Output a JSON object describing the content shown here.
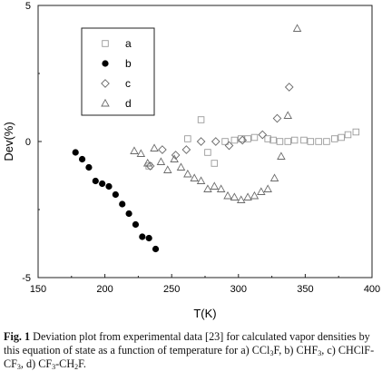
{
  "chart_data": {
    "type": "scatter",
    "xlabel": "T(K)",
    "ylabel": "Dev(%)",
    "xlim": [
      150,
      400
    ],
    "ylim": [
      -5,
      5
    ],
    "xticks": [
      "150",
      "200",
      "250",
      "300",
      "350",
      "400"
    ],
    "yticks": [
      "5",
      "0",
      "-5"
    ],
    "grid": false,
    "legend": "top-left",
    "series": [
      {
        "name": "a",
        "marker": "square",
        "color": "#9a9a9a",
        "filled": false,
        "points": [
          [
            233,
            -0.9
          ],
          [
            262,
            0.1
          ],
          [
            272,
            0.8
          ],
          [
            277,
            -0.4
          ],
          [
            282,
            -0.8
          ],
          [
            290,
            0.0
          ],
          [
            297,
            0.05
          ],
          [
            302,
            0.1
          ],
          [
            307,
            0.1
          ],
          [
            312,
            0.15
          ],
          [
            322,
            0.1
          ],
          [
            326,
            0.05
          ],
          [
            331,
            0.0
          ],
          [
            337,
            0.0
          ],
          [
            342,
            0.05
          ],
          [
            349,
            0.05
          ],
          [
            354,
            0.0
          ],
          [
            360,
            0.0
          ],
          [
            366,
            0.0
          ],
          [
            372,
            0.1
          ],
          [
            377,
            0.15
          ],
          [
            382,
            0.25
          ],
          [
            388,
            0.35
          ]
        ]
      },
      {
        "name": "b",
        "marker": "circle",
        "color": "#000000",
        "filled": true,
        "points": [
          [
            178,
            -0.4
          ],
          [
            183,
            -0.65
          ],
          [
            188,
            -0.95
          ],
          [
            193,
            -1.45
          ],
          [
            198,
            -1.55
          ],
          [
            203,
            -1.65
          ],
          [
            208,
            -1.95
          ],
          [
            213,
            -2.3
          ],
          [
            218,
            -2.65
          ],
          [
            223,
            -3.05
          ],
          [
            228,
            -3.5
          ],
          [
            233,
            -3.55
          ],
          [
            238,
            -3.95
          ]
        ]
      },
      {
        "name": "c",
        "marker": "diamond",
        "color": "#6a6a6a",
        "filled": false,
        "points": [
          [
            234,
            -0.9
          ],
          [
            243,
            -0.3
          ],
          [
            253,
            -0.5
          ],
          [
            261,
            -0.3
          ],
          [
            272,
            0.0
          ],
          [
            283,
            0.0
          ],
          [
            293,
            -0.15
          ],
          [
            303,
            0.05
          ],
          [
            318,
            0.25
          ],
          [
            329,
            0.85
          ],
          [
            338,
            2.0
          ]
        ]
      },
      {
        "name": "d",
        "marker": "triangle",
        "color": "#6a6a6a",
        "filled": false,
        "points": [
          [
            222,
            -0.35
          ],
          [
            227,
            -0.45
          ],
          [
            232,
            -0.8
          ],
          [
            237,
            -0.25
          ],
          [
            242,
            -0.75
          ],
          [
            247,
            -1.05
          ],
          [
            252,
            -0.65
          ],
          [
            257,
            -0.95
          ],
          [
            262,
            -1.2
          ],
          [
            267,
            -1.35
          ],
          [
            272,
            -1.45
          ],
          [
            277,
            -1.75
          ],
          [
            282,
            -1.65
          ],
          [
            287,
            -1.75
          ],
          [
            292,
            -2.0
          ],
          [
            297,
            -2.05
          ],
          [
            302,
            -2.15
          ],
          [
            307,
            -2.05
          ],
          [
            312,
            -2.0
          ],
          [
            317,
            -1.85
          ],
          [
            322,
            -1.75
          ],
          [
            327,
            -1.35
          ],
          [
            332,
            -0.55
          ],
          [
            337,
            0.95
          ],
          [
            344,
            4.15
          ]
        ]
      }
    ]
  },
  "caption": {
    "label": "Fig. 1",
    "text": " Deviation plot from experimental data [23] for calculated vapor densities by this equation of state as a function of temperature for a) CCl",
    "parts": [
      "3",
      "F, b) CHF",
      "3",
      ", c) CHClF-CF",
      "3",
      ", d) CF",
      "3",
      "-CH",
      "2",
      "F."
    ]
  }
}
